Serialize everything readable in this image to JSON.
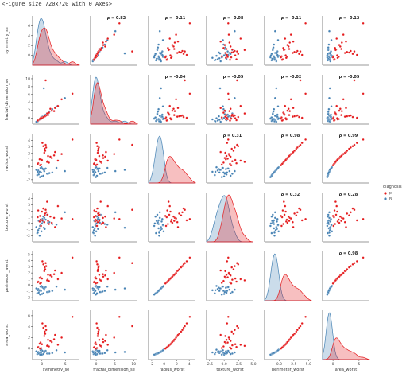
{
  "header": {
    "figure_repr": "<Figure size 720x720 with 0 Axes>"
  },
  "colors": {
    "M": "#e41a1c",
    "B": "#4682b4",
    "axis": "#333333"
  },
  "chart_data": {
    "type": "pairplot",
    "variables": [
      "symmetry_se",
      "fractal_dimension_se",
      "radius_worst",
      "texture_worst",
      "perimeter_worst",
      "area_worst"
    ],
    "hue": "diagnosis",
    "hue_levels": [
      "M",
      "B"
    ],
    "diag_kind": "kde",
    "offdiag_kind": "scatter",
    "axis_ranges": [
      [
        -2,
        8
      ],
      [
        -1.5,
        11
      ],
      [
        -2.5,
        5
      ],
      [
        -3,
        5
      ],
      [
        -2.5,
        5.5
      ],
      [
        -2,
        7
      ]
    ],
    "x_ticks": [
      [
        0,
        5
      ],
      [
        0,
        5,
        10
      ],
      [
        -2,
        0,
        2,
        4
      ],
      [
        -2.5,
        0.0,
        2.5,
        5.0
      ],
      [
        0.0,
        2.5,
        5.0
      ],
      [
        0,
        5
      ]
    ],
    "x_tick_labels": [
      [
        "0",
        "5"
      ],
      [
        "0",
        "5",
        "10"
      ],
      [
        "-2",
        "0",
        "2",
        "4"
      ],
      [
        "-2.5",
        "0.0",
        "2.5",
        "5.0"
      ],
      [
        "0.0",
        "2.5",
        "5.0"
      ],
      [
        "0",
        "5"
      ]
    ],
    "y_ticks": [
      [
        0,
        2,
        4,
        6
      ],
      [
        0,
        2,
        4,
        6,
        8,
        10
      ],
      [
        -2,
        -1,
        0,
        1,
        2,
        3,
        4
      ],
      [
        -2,
        -1,
        0,
        1,
        2,
        3,
        4
      ],
      [
        -2,
        -1,
        0,
        1,
        2,
        3,
        4,
        5
      ],
      [
        0,
        2,
        4,
        6
      ]
    ],
    "y_tick_labels": [
      [
        "0",
        "2",
        "4",
        "6"
      ],
      [
        "0",
        "2",
        "4",
        "6",
        "8",
        "10"
      ],
      [
        "-2",
        "-1",
        "0",
        "1",
        "2",
        "3",
        "4"
      ],
      [
        "-2",
        "-1",
        "0",
        "1",
        "2",
        "3",
        "4"
      ],
      [
        "-2",
        "-1",
        "0",
        "1",
        "2",
        "3",
        "4",
        "5"
      ],
      [
        "0",
        "2",
        "4",
        "6"
      ]
    ],
    "correlation_annotations": [
      {
        "row": 0,
        "col": 1,
        "text": "ρ = 0.82"
      },
      {
        "row": 0,
        "col": 2,
        "text": "ρ = -0.11"
      },
      {
        "row": 0,
        "col": 3,
        "text": "ρ = -0.08"
      },
      {
        "row": 0,
        "col": 4,
        "text": "ρ = -0.11"
      },
      {
        "row": 0,
        "col": 5,
        "text": "ρ = -0.12"
      },
      {
        "row": 1,
        "col": 2,
        "text": "ρ = -0.04"
      },
      {
        "row": 1,
        "col": 3,
        "text": "ρ = -0.05"
      },
      {
        "row": 1,
        "col": 4,
        "text": "ρ = -0.02"
      },
      {
        "row": 1,
        "col": 5,
        "text": "ρ = -0.05"
      },
      {
        "row": 2,
        "col": 3,
        "text": "ρ = 0.31"
      },
      {
        "row": 2,
        "col": 4,
        "text": "ρ = 0.98"
      },
      {
        "row": 2,
        "col": 5,
        "text": "ρ = 0.99"
      },
      {
        "row": 3,
        "col": 4,
        "text": "ρ = 0.32"
      },
      {
        "row": 3,
        "col": 5,
        "text": "ρ = 0.28"
      },
      {
        "row": 4,
        "col": 5,
        "text": "ρ = 0.98"
      }
    ],
    "legend": {
      "title": "diagnosis",
      "entries": [
        "M",
        "B"
      ],
      "position": "right"
    },
    "sample_points": {
      "M": {
        "symmetry_se": [
          -0.3,
          1.2,
          0.5,
          -0.8,
          2.6,
          0.9,
          -0.2,
          1.8,
          0.1,
          3.4,
          -0.5,
          0.7,
          1.5,
          4.2,
          0.3,
          -0.9,
          2.1,
          0.6,
          1.1,
          6.5,
          0.0,
          2.8,
          -0.4,
          1.3,
          0.8
        ],
        "fractal_dimension_se": [
          -0.2,
          0.9,
          0.4,
          -0.5,
          1.8,
          0.7,
          0.2,
          2.4,
          0.1,
          3.1,
          -0.3,
          0.5,
          1.4,
          4.8,
          0.3,
          -0.6,
          1.9,
          0.6,
          1.2,
          6.2,
          0.0,
          2.6,
          -0.1,
          0.8,
          9.6
        ],
        "radius_worst": [
          1.2,
          0.8,
          2.1,
          0.5,
          1.7,
          2.9,
          0.3,
          1.5,
          3.6,
          0.9,
          1.1,
          2.4,
          0.6,
          1.9,
          3.1,
          0.4,
          1.3,
          2.7,
          0.7,
          4.1,
          1.0,
          2.2,
          0.2,
          1.6,
          3.3
        ],
        "texture_worst": [
          0.6,
          1.4,
          0.2,
          2.1,
          0.9,
          1.8,
          -0.4,
          1.1,
          0.5,
          2.8,
          0.3,
          1.6,
          -0.1,
          0.8,
          2.4,
          1.0,
          0.1,
          1.3,
          3.5,
          0.7,
          1.9,
          -0.6,
          1.2,
          0.4,
          2.2
        ],
        "perimeter_worst": [
          1.3,
          0.9,
          2.3,
          0.6,
          1.8,
          3.1,
          0.4,
          1.6,
          3.9,
          1.0,
          1.2,
          2.6,
          0.7,
          2.0,
          3.4,
          0.5,
          1.4,
          2.9,
          0.8,
          4.5,
          1.1,
          2.4,
          0.3,
          1.7,
          3.6
        ],
        "area_worst": [
          1.1,
          0.6,
          2.3,
          0.3,
          1.7,
          3.4,
          0.1,
          1.4,
          4.6,
          0.7,
          0.9,
          2.7,
          0.4,
          2.0,
          3.8,
          0.2,
          1.2,
          3.1,
          0.5,
          5.8,
          0.8,
          2.5,
          0.0,
          1.6,
          4.1
        ]
      },
      "B": {
        "symmetry_se": [
          -0.6,
          0.2,
          -1.0,
          0.5,
          -0.3,
          1.1,
          -0.8,
          0.0,
          0.8,
          -0.5,
          1.6,
          -1.2,
          0.3,
          -0.1,
          2.2,
          -0.7,
          0.6,
          4.9,
          -0.4,
          0.1,
          -0.9,
          1.3,
          0.4,
          -0.2,
          3.1
        ],
        "fractal_dimension_se": [
          -0.4,
          0.3,
          -0.7,
          0.6,
          -0.2,
          1.2,
          -0.6,
          0.1,
          0.9,
          -0.3,
          1.7,
          -0.9,
          0.2,
          0.0,
          2.3,
          -0.5,
          0.5,
          5.1,
          -0.1,
          0.4,
          -0.8,
          1.0,
          7.6,
          -0.2,
          3.0
        ],
        "radius_worst": [
          -0.9,
          -0.4,
          -1.3,
          -0.7,
          -0.2,
          -1.1,
          -0.6,
          -1.5,
          -0.3,
          -0.8,
          -1.0,
          -0.5,
          -1.4,
          -0.1,
          -0.9,
          -1.2,
          -0.4,
          -0.7,
          -1.6,
          -0.3,
          -0.8,
          -1.1,
          -0.5,
          -0.9,
          -0.2
        ],
        "texture_worst": [
          -0.8,
          0.3,
          -1.6,
          0.9,
          -0.3,
          1.4,
          -1.1,
          0.0,
          0.6,
          -2.0,
          0.2,
          -0.6,
          1.1,
          -1.3,
          -0.1,
          0.4,
          -0.9,
          1.8,
          -0.4,
          0.7,
          -1.5,
          0.1,
          -0.7,
          0.5,
          -0.2
        ],
        "perimeter_worst": [
          -0.9,
          -0.4,
          -1.3,
          -0.7,
          -0.2,
          -1.1,
          -0.6,
          -1.4,
          -0.3,
          -0.8,
          -1.0,
          -0.5,
          -1.3,
          -0.1,
          -0.9,
          -1.2,
          -0.4,
          -0.7,
          -1.5,
          -0.3,
          -0.8,
          -1.1,
          -0.5,
          -0.9,
          -0.2
        ],
        "area_worst": [
          -0.8,
          -0.5,
          -1.0,
          -0.7,
          -0.3,
          -0.9,
          -0.6,
          -1.1,
          -0.4,
          -0.7,
          -0.9,
          -0.5,
          -1.0,
          -0.2,
          -0.8,
          -0.9,
          -0.5,
          -0.7,
          -1.1,
          -0.4,
          -0.7,
          -0.9,
          -0.6,
          -0.8,
          -0.3
        ]
      }
    }
  }
}
